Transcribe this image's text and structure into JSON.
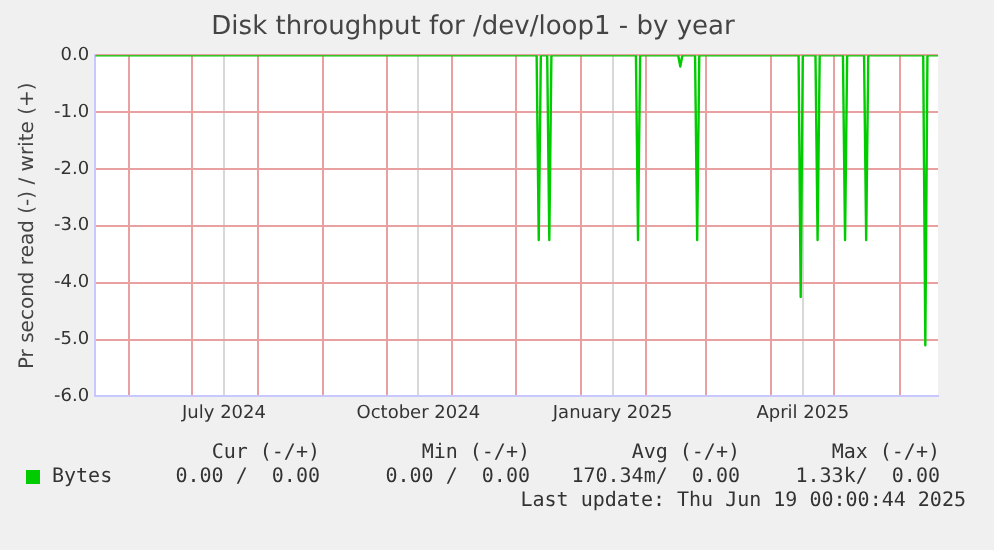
{
  "chart_data": {
    "type": "line",
    "title": "Disk throughput for /dev/loop1 - by year",
    "ylabel": "Pr second read (-) / write (+)",
    "series": [
      {
        "name": "Bytes",
        "color": "#00cc00",
        "x": [
          "2024-05-16",
          "2024-12-11",
          "2024-12-12",
          "2024-12-13",
          "2024-12-16",
          "2024-12-17",
          "2024-12-18",
          "2025-01-27",
          "2025-01-28",
          "2025-01-29",
          "2025-02-16",
          "2025-02-17",
          "2025-02-18",
          "2025-02-24",
          "2025-02-25",
          "2025-02-26",
          "2025-04-14",
          "2025-04-15",
          "2025-04-16",
          "2025-04-22",
          "2025-04-23",
          "2025-04-24",
          "2025-05-05",
          "2025-05-06",
          "2025-05-07",
          "2025-05-15",
          "2025-05-16",
          "2025-05-17",
          "2025-06-12",
          "2025-06-13",
          "2025-06-14",
          "2025-06-19"
        ],
        "values": [
          0,
          0,
          -3.25,
          0,
          0,
          -3.25,
          0,
          0,
          -3.25,
          0,
          0,
          -0.2,
          0,
          0,
          -3.25,
          0,
          0,
          -4.25,
          0,
          0,
          -3.25,
          0,
          0,
          -3.25,
          0,
          0,
          -3.25,
          0,
          0,
          -5.1,
          0,
          0
        ]
      }
    ],
    "xlim": [
      "2024-05-16",
      "2025-06-19"
    ],
    "xticks": [
      {
        "value": "2024-06-01",
        "label": null
      },
      {
        "value": "2024-07-01",
        "label": null
      },
      {
        "value": "2024-07-16",
        "label": "July 2024"
      },
      {
        "value": "2024-08-01",
        "label": null
      },
      {
        "value": "2024-09-01",
        "label": null
      },
      {
        "value": "2024-10-01",
        "label": null
      },
      {
        "value": "2024-10-16",
        "label": "October 2024"
      },
      {
        "value": "2024-11-01",
        "label": null
      },
      {
        "value": "2024-12-01",
        "label": null
      },
      {
        "value": "2025-01-01",
        "label": null
      },
      {
        "value": "2025-01-16",
        "label": "January 2025"
      },
      {
        "value": "2025-02-01",
        "label": null
      },
      {
        "value": "2025-03-01",
        "label": null
      },
      {
        "value": "2025-04-01",
        "label": null
      },
      {
        "value": "2025-04-16",
        "label": "April 2025"
      },
      {
        "value": "2025-05-01",
        "label": null
      },
      {
        "value": "2025-06-01",
        "label": null
      }
    ],
    "ylim": [
      -6,
      0
    ],
    "yticks": [
      {
        "value": -6,
        "label": "-6.0"
      },
      {
        "value": -5,
        "label": "-5.0"
      },
      {
        "value": -4,
        "label": "-4.0"
      },
      {
        "value": -3,
        "label": "-3.0"
      },
      {
        "value": -2,
        "label": "-2.0"
      },
      {
        "value": -1,
        "label": "-1.0"
      },
      {
        "value": 0,
        "label": "0.0"
      }
    ],
    "grid": true,
    "legend": "bottom left",
    "marker": "none",
    "line_style": "solid",
    "annotations": [
      "Cur (-/+)",
      "Min (-/+)",
      "Avg (-/+)",
      "Max (-/+)",
      "0.00 /  0.00",
      "0.00 /  0.00",
      "170.34m/  0.00",
      "1.33k/  0.00",
      "Last update: Thu Jun 19 00:00:44 2025"
    ]
  }
}
